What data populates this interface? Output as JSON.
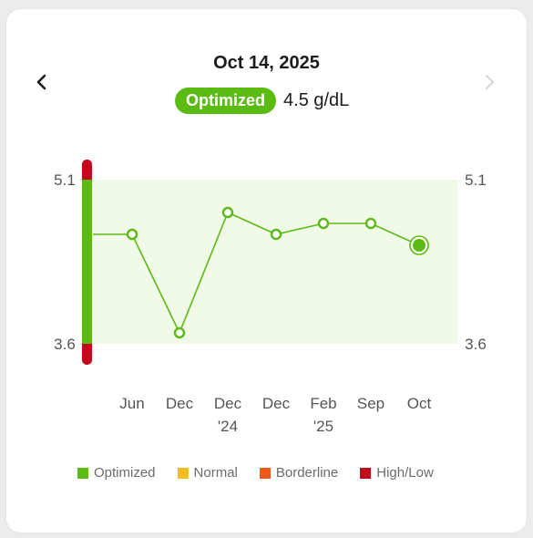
{
  "header": {
    "date": "Oct 14, 2025",
    "status_label": "Optimized",
    "value": "4.5 g/dL"
  },
  "colors": {
    "optimized": "#5cbb13",
    "normal": "#f5bd1b",
    "borderline": "#f25a1b",
    "high_low": "#c4081b",
    "optimized_band": "#f1f9e9"
  },
  "icons": {
    "prev": "chevron-left-icon",
    "next": "chevron-right-icon"
  },
  "legend": [
    {
      "label": "Optimized",
      "color": "#5cbb13"
    },
    {
      "label": "Normal",
      "color": "#f5bd1b"
    },
    {
      "label": "Borderline",
      "color": "#f25a1b"
    },
    {
      "label": "High/Low",
      "color": "#c4081b"
    }
  ],
  "chart_data": {
    "type": "line",
    "title": "",
    "xlabel": "",
    "ylabel": "",
    "unit": "g/dL",
    "ylim": [
      3.6,
      5.1
    ],
    "optimized_range": [
      3.6,
      5.1
    ],
    "y_ticks": [
      "5.1",
      "3.6"
    ],
    "grid": false,
    "legend_position": "bottom",
    "categories": [
      {
        "line1": "Jun",
        "line2": ""
      },
      {
        "line1": "Dec",
        "line2": ""
      },
      {
        "line1": "Dec",
        "line2": "'24"
      },
      {
        "line1": "Dec",
        "line2": ""
      },
      {
        "line1": "Feb",
        "line2": "'25"
      },
      {
        "line1": "Sep",
        "line2": ""
      },
      {
        "line1": "Oct",
        "line2": ""
      }
    ],
    "values": [
      4.6,
      3.7,
      4.8,
      4.6,
      4.7,
      4.7,
      4.5
    ],
    "start_value": 4.6,
    "selected_index": 6
  }
}
